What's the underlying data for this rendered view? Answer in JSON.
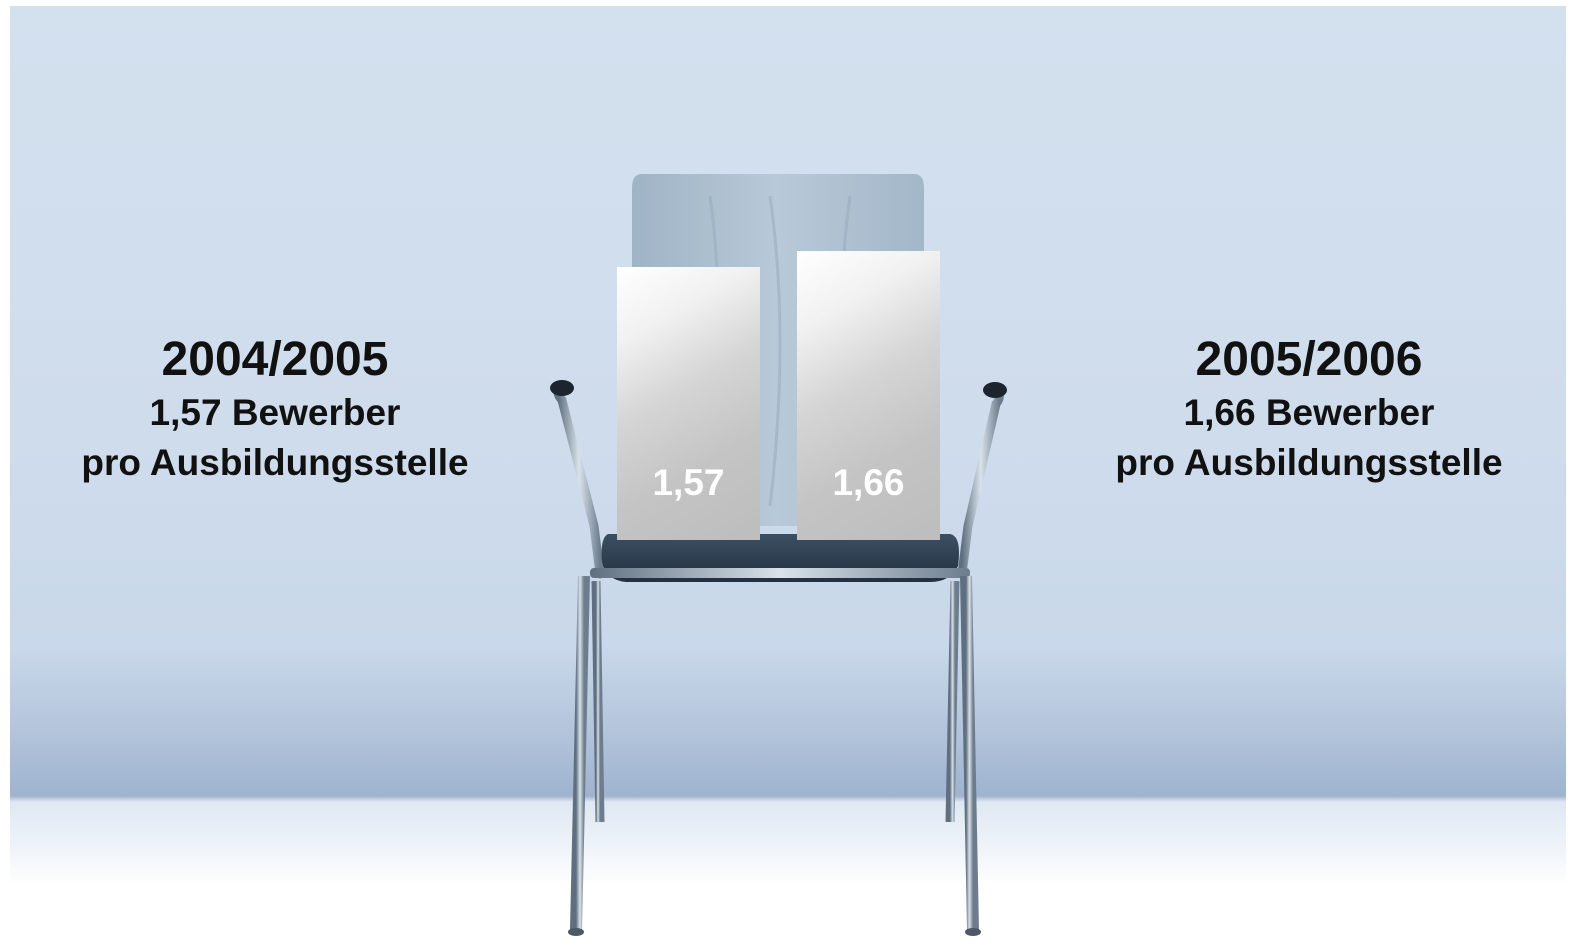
{
  "chart_data": {
    "type": "bar",
    "categories": [
      "2004/2005",
      "2005/2006"
    ],
    "values": [
      1.57,
      1.66
    ],
    "value_labels": [
      "1,57",
      "1,66"
    ],
    "bar_color": "#c8c8c8",
    "value_label_color": "#ffffff"
  },
  "left_label": {
    "year": "2004/2005",
    "line1": "1,57 Bewerber",
    "line2": "pro Ausbildungsstelle"
  },
  "right_label": {
    "year": "2005/2006",
    "line1": "1,66 Bewerber",
    "line2": "pro Ausbildungsstelle"
  },
  "colors": {
    "wall": "#d3e1ef",
    "floor": "#ffffff",
    "text": "#111111"
  }
}
